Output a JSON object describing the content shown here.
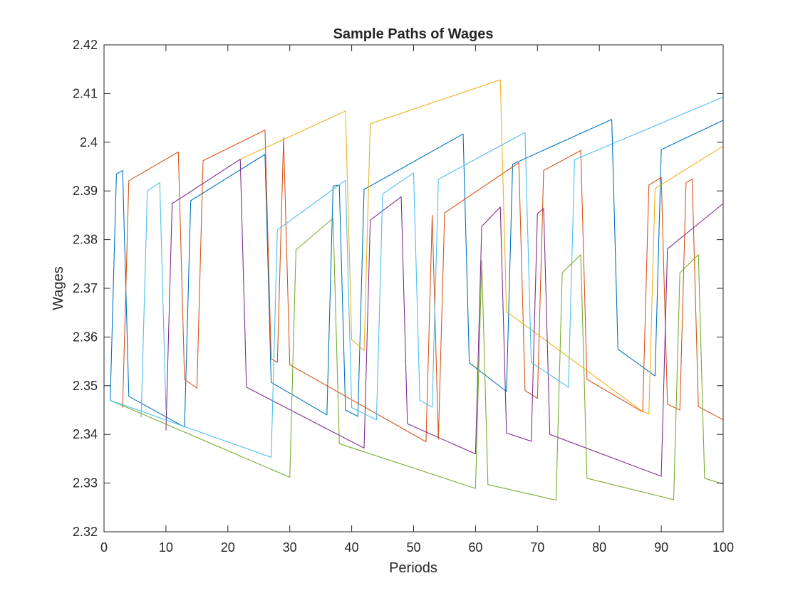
{
  "chart_data": {
    "type": "line",
    "title": "Sample Paths of Wages",
    "xlabel": "Periods",
    "ylabel": "Wages",
    "xlim": [
      0,
      100
    ],
    "ylim": [
      2.32,
      2.42
    ],
    "xticks": [
      "0",
      "10",
      "20",
      "30",
      "40",
      "50",
      "60",
      "70",
      "80",
      "90",
      "100"
    ],
    "yticks": [
      "2.32",
      "2.33",
      "2.34",
      "2.35",
      "2.36",
      "2.37",
      "2.38",
      "2.39",
      "2.4",
      "2.41",
      "2.42"
    ],
    "grid": false,
    "legend": "none",
    "series": [
      {
        "color": "#0072BD",
        "points": [
          [
            1,
            2.347
          ],
          [
            2,
            2.3935
          ],
          [
            3,
            2.3942
          ],
          [
            4,
            2.3478
          ],
          [
            13,
            2.3415
          ],
          [
            14,
            2.388
          ],
          [
            26,
            2.3975
          ],
          [
            27,
            2.3507
          ],
          [
            36,
            2.344
          ],
          [
            37,
            2.391
          ],
          [
            38,
            2.3912
          ],
          [
            39,
            2.345
          ],
          [
            41,
            2.3437
          ],
          [
            42,
            2.3903
          ],
          [
            58,
            2.4017
          ],
          [
            59,
            2.3547
          ],
          [
            65,
            2.3488
          ],
          [
            66,
            2.3955
          ],
          [
            82,
            2.4047
          ],
          [
            83,
            2.3575
          ],
          [
            89,
            2.352
          ],
          [
            90,
            2.3985
          ],
          [
            100,
            2.4045
          ]
        ]
      },
      {
        "color": "#D95319",
        "points": [
          [
            3,
            2.3455
          ],
          [
            4,
            2.3921
          ],
          [
            12,
            2.398
          ],
          [
            13,
            2.3513
          ],
          [
            15,
            2.3495
          ],
          [
            16,
            2.3962
          ],
          [
            26,
            2.4025
          ],
          [
            27,
            2.3555
          ],
          [
            28,
            2.3548
          ],
          [
            29,
            2.401
          ],
          [
            30,
            2.3543
          ],
          [
            52,
            2.3385
          ],
          [
            53,
            2.385
          ],
          [
            54,
            2.339
          ],
          [
            55,
            2.3855
          ],
          [
            67,
            2.3958
          ],
          [
            68,
            2.349
          ],
          [
            70,
            2.3474
          ],
          [
            71,
            2.3942
          ],
          [
            77,
            2.3983
          ],
          [
            78,
            2.3513
          ],
          [
            87,
            2.3446
          ],
          [
            88,
            2.3912
          ],
          [
            90,
            2.3928
          ],
          [
            91,
            2.3462
          ],
          [
            93,
            2.345
          ],
          [
            94,
            2.3917
          ],
          [
            95,
            2.3924
          ],
          [
            96,
            2.3457
          ],
          [
            100,
            2.343
          ]
        ]
      },
      {
        "color": "#EDB120",
        "points": [
          [
            22,
            2.3965
          ],
          [
            39,
            2.4064
          ],
          [
            40,
            2.3595
          ],
          [
            42,
            2.3572
          ],
          [
            43,
            2.4038
          ],
          [
            64,
            2.4128
          ],
          [
            65,
            2.3652
          ],
          [
            87,
            2.3447
          ],
          [
            88,
            2.3442
          ],
          [
            89,
            2.3905
          ],
          [
            100,
            2.3992
          ]
        ]
      },
      {
        "color": "#7E2F8E",
        "points": [
          [
            10,
            2.3408
          ],
          [
            11,
            2.3874
          ],
          [
            22,
            2.3965
          ],
          [
            23,
            2.3497
          ],
          [
            42,
            2.3372
          ],
          [
            43,
            2.384
          ],
          [
            48,
            2.3888
          ],
          [
            49,
            2.3422
          ],
          [
            60,
            2.336
          ],
          [
            61,
            2.3827
          ],
          [
            64,
            2.3867
          ],
          [
            65,
            2.3403
          ],
          [
            69,
            2.3386
          ],
          [
            70,
            2.3853
          ],
          [
            71,
            2.3864
          ],
          [
            72,
            2.34
          ],
          [
            90,
            2.3314
          ],
          [
            91,
            2.3781
          ],
          [
            100,
            2.3874
          ]
        ]
      },
      {
        "color": "#77AC30",
        "points": [
          [
            1,
            2.347
          ],
          [
            30,
            2.3312
          ],
          [
            31,
            2.3779
          ],
          [
            37,
            2.3844
          ],
          [
            38,
            2.3381
          ],
          [
            60,
            2.3289
          ],
          [
            61,
            2.3757
          ],
          [
            62,
            2.3297
          ],
          [
            73,
            2.3265
          ],
          [
            74,
            2.3732
          ],
          [
            77,
            2.3769
          ],
          [
            78,
            2.331
          ],
          [
            92,
            2.3266
          ],
          [
            93,
            2.3732
          ],
          [
            96,
            2.3769
          ],
          [
            97,
            2.331
          ],
          [
            100,
            2.3298
          ]
        ]
      },
      {
        "color": "#4DBEEE",
        "points": [
          [
            1,
            2.347
          ],
          [
            27,
            2.3353
          ],
          [
            28,
            2.382
          ],
          [
            39,
            2.3922
          ],
          [
            40,
            2.3455
          ],
          [
            44,
            2.343
          ],
          [
            45,
            2.3894
          ],
          [
            50,
            2.3937
          ],
          [
            51,
            2.347
          ],
          [
            53,
            2.3456
          ],
          [
            54,
            2.3924
          ],
          [
            68,
            2.402
          ],
          [
            69,
            2.3548
          ],
          [
            75,
            2.3497
          ],
          [
            76,
            2.3964
          ],
          [
            100,
            2.4093
          ]
        ]
      },
      {
        "color": "#4DBEEE",
        "points": [
          [
            6,
            2.3435
          ],
          [
            7,
            2.39
          ],
          [
            9,
            2.3917
          ],
          [
            10,
            2.345
          ]
        ]
      }
    ]
  }
}
